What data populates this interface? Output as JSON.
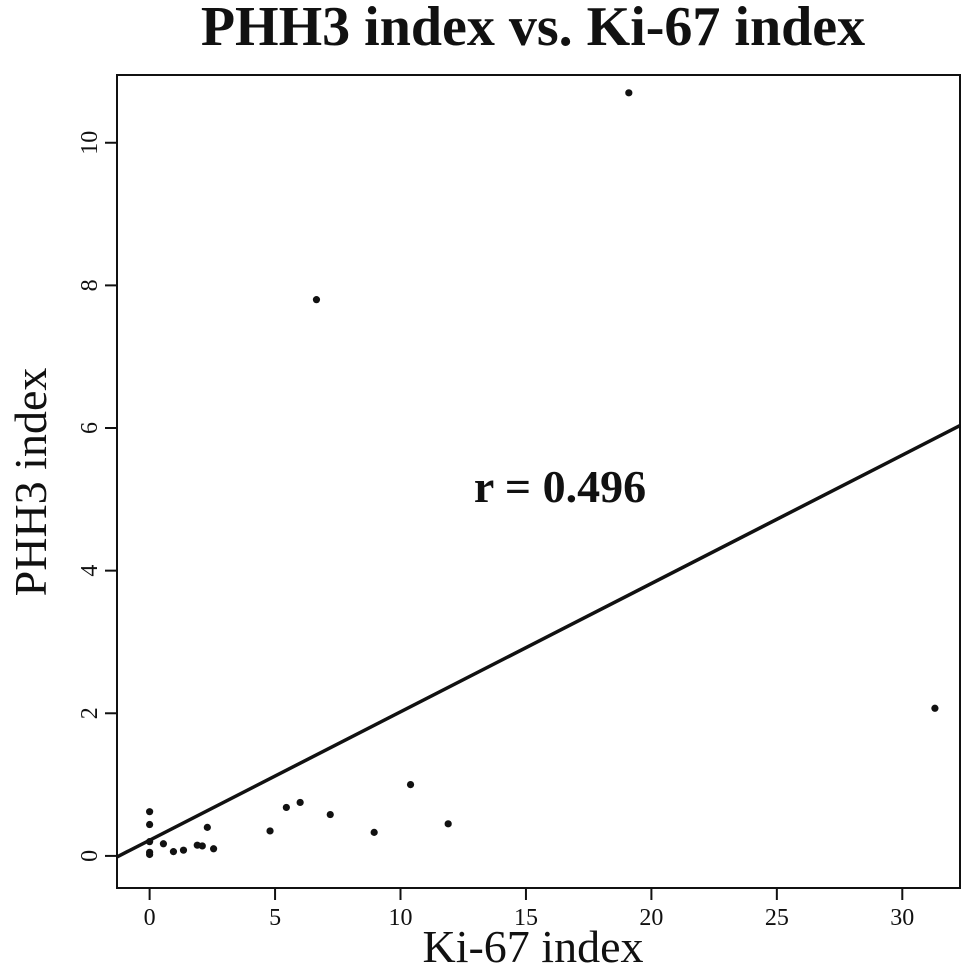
{
  "chart_data": {
    "type": "scatter",
    "title": "PHH3 index vs. Ki-67 index",
    "xlabel": "Ki-67 index",
    "ylabel": "PHH3 index",
    "xlim": [
      -1.3,
      32.3
    ],
    "ylim": [
      -0.45,
      10.95
    ],
    "xticks": [
      0,
      5,
      10,
      15,
      20,
      25,
      30
    ],
    "yticks": [
      0,
      2,
      4,
      6,
      8,
      10
    ],
    "grid": false,
    "annotation": "r = 0.496",
    "regression": {
      "intercept": 0.22,
      "slope": 0.18
    },
    "points": [
      {
        "x": 0,
        "y": 0.62
      },
      {
        "x": 0,
        "y": 0.44
      },
      {
        "x": 0,
        "y": 0.2
      },
      {
        "x": 0,
        "y": 0.05
      },
      {
        "x": 0,
        "y": 0.02
      },
      {
        "x": 0.55,
        "y": 0.17
      },
      {
        "x": 0.95,
        "y": 0.06
      },
      {
        "x": 1.35,
        "y": 0.08
      },
      {
        "x": 1.9,
        "y": 0.15
      },
      {
        "x": 2.1,
        "y": 0.14
      },
      {
        "x": 2.3,
        "y": 0.4
      },
      {
        "x": 2.55,
        "y": 0.1
      },
      {
        "x": 4.8,
        "y": 0.35
      },
      {
        "x": 5.45,
        "y": 0.68
      },
      {
        "x": 6.0,
        "y": 0.75
      },
      {
        "x": 6.65,
        "y": 7.8
      },
      {
        "x": 7.2,
        "y": 0.58
      },
      {
        "x": 8.95,
        "y": 0.33
      },
      {
        "x": 10.4,
        "y": 1.0
      },
      {
        "x": 11.9,
        "y": 0.45
      },
      {
        "x": 19.1,
        "y": 10.7
      },
      {
        "x": 31.3,
        "y": 2.07
      }
    ]
  }
}
